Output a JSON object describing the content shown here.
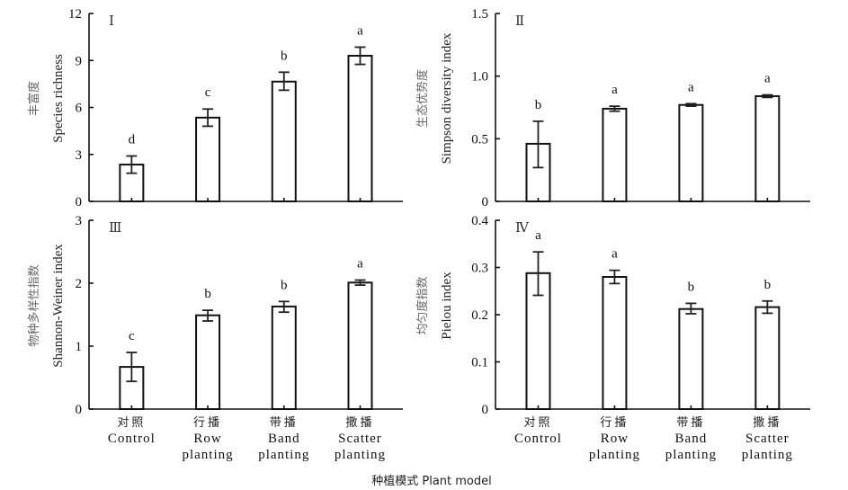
{
  "figure": {
    "x_title": "种植模式 Plant model",
    "categories": [
      {
        "zh": "对照",
        "en1": "Control",
        "en2": ""
      },
      {
        "zh": "行播",
        "en1": "Row",
        "en2": "planting"
      },
      {
        "zh": "带播",
        "en1": "Band",
        "en2": "planting"
      },
      {
        "zh": "撒播",
        "en1": "Scatter",
        "en2": "planting"
      }
    ]
  },
  "chart_data": [
    {
      "type": "bar",
      "panel": "Ⅰ",
      "ylabel_zh": "丰富度",
      "ylabel": "Species richness",
      "categories": [
        "Control",
        "Row planting",
        "Band planting",
        "Scatter planting"
      ],
      "values": [
        2.35,
        5.35,
        7.65,
        9.3
      ],
      "error_low": [
        1.8,
        4.8,
        7.1,
        8.75
      ],
      "error_high": [
        2.9,
        5.9,
        8.25,
        9.85
      ],
      "significance": [
        "d",
        "c",
        "b",
        "a"
      ],
      "ylim": [
        0,
        12
      ],
      "yticks": [
        0,
        3,
        6,
        9,
        12
      ],
      "ytick_labels": [
        "0",
        "3",
        "6",
        "9",
        "12"
      ]
    },
    {
      "type": "bar",
      "panel": "Ⅱ",
      "ylabel_zh": "生态优势度",
      "ylabel": "Simpson diversity index",
      "categories": [
        "Control",
        "Row planting",
        "Band planting",
        "Scatter planting"
      ],
      "values": [
        0.46,
        0.74,
        0.77,
        0.84
      ],
      "error_low": [
        0.27,
        0.72,
        0.76,
        0.83
      ],
      "error_high": [
        0.64,
        0.76,
        0.78,
        0.85
      ],
      "significance": [
        "b",
        "a",
        "a",
        "a"
      ],
      "ylim": [
        0,
        1.5
      ],
      "yticks": [
        0,
        0.5,
        1.0,
        1.5
      ],
      "ytick_labels": [
        "0",
        "0.5",
        "1.0",
        "1.5"
      ]
    },
    {
      "type": "bar",
      "panel": "Ⅲ",
      "ylabel_zh": "物种多样性指数",
      "ylabel": "Shannon-Weiner index",
      "categories": [
        "Control",
        "Row planting",
        "Band planting",
        "Scatter planting"
      ],
      "values": [
        0.67,
        1.49,
        1.63,
        2.01
      ],
      "error_low": [
        0.44,
        1.4,
        1.54,
        1.97
      ],
      "error_high": [
        0.9,
        1.57,
        1.71,
        2.05
      ],
      "significance": [
        "c",
        "b",
        "b",
        "a"
      ],
      "ylim": [
        0,
        3
      ],
      "yticks": [
        0,
        1,
        2,
        3
      ],
      "ytick_labels": [
        "0",
        "1",
        "2",
        "3"
      ]
    },
    {
      "type": "bar",
      "panel": "Ⅳ",
      "ylabel_zh": "均匀度指数",
      "ylabel": "Pielou index",
      "categories": [
        "Control",
        "Row planting",
        "Band planting",
        "Scatter planting"
      ],
      "values": [
        0.288,
        0.28,
        0.212,
        0.216
      ],
      "error_low": [
        0.241,
        0.266,
        0.202,
        0.203
      ],
      "error_high": [
        0.333,
        0.294,
        0.224,
        0.229
      ],
      "significance": [
        "a",
        "a",
        "b",
        "b"
      ],
      "ylim": [
        0,
        0.4
      ],
      "yticks": [
        0,
        0.1,
        0.2,
        0.3,
        0.4
      ],
      "ytick_labels": [
        "0",
        "0.1",
        "0.2",
        "0.3",
        "0.4"
      ]
    }
  ]
}
